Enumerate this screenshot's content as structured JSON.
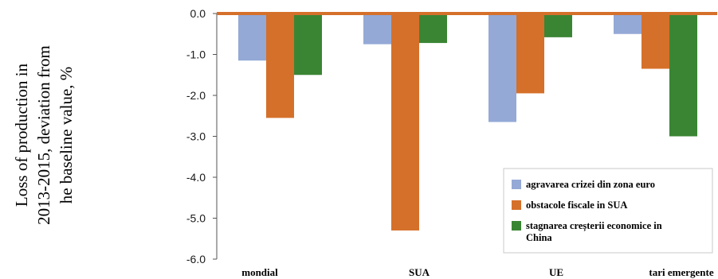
{
  "chart_data": {
    "type": "bar",
    "ylabel_lines": [
      "Loss of production in",
      "2013-2015, deviation from",
      "he baseline value, %"
    ],
    "categories": [
      "mondial",
      "SUA",
      "UE",
      "tari emergente"
    ],
    "series": [
      {
        "name": "agravarea crizei din zona euro",
        "values": [
          -1.15,
          -0.75,
          -2.65,
          -0.5
        ]
      },
      {
        "name": "obstacole fiscale in SUA",
        "values": [
          -2.55,
          -5.3,
          -1.95,
          -1.35
        ]
      },
      {
        "name": "stagnarea creșterii economice in China",
        "values": [
          -1.5,
          -0.72,
          -0.58,
          -3.0
        ]
      }
    ],
    "ylim": [
      -6.0,
      0.0
    ],
    "yticks": [
      "0.0",
      "-1.0",
      "-2.0",
      "-3.0",
      "-4.0",
      "-5.0",
      "-6.0"
    ],
    "ytick_values": [
      0,
      -1,
      -2,
      -3,
      -4,
      -5,
      -6
    ],
    "legend": {
      "placement": "bottom-right",
      "entries": [
        {
          "lines": [
            "agravarea crizei din zona euro"
          ]
        },
        {
          "lines": [
            "obstacole fiscale in SUA"
          ]
        },
        {
          "lines": [
            "stagnarea creșterii economice in",
            "China"
          ]
        }
      ]
    },
    "colors": [
      "#94a9d6",
      "#d5702a",
      "#3a8534"
    ],
    "zero_line_color": "#d5702a",
    "grid": false
  }
}
